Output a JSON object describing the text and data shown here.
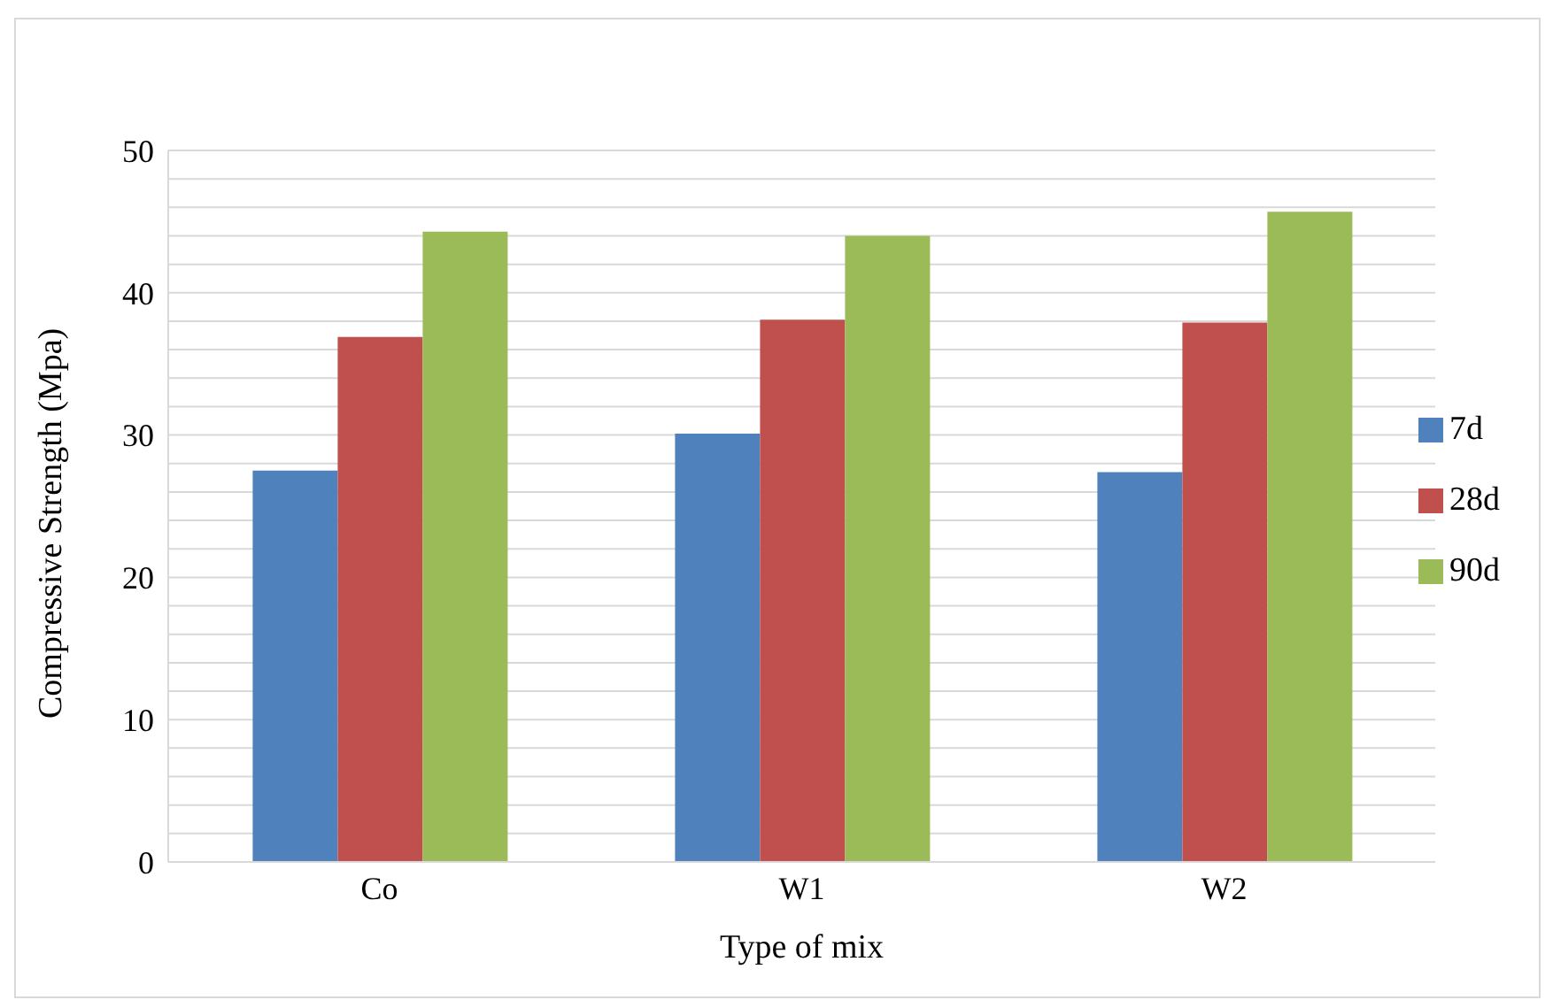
{
  "chart_data": {
    "type": "bar",
    "xlabel": "Type of mix",
    "ylabel": "Compressive Strength (Mpa)",
    "categories": [
      "Co",
      "W1",
      "W2"
    ],
    "series": [
      {
        "name": "7d",
        "color": "#4f81bd",
        "values": [
          27.5,
          30.1,
          27.4
        ]
      },
      {
        "name": "28d",
        "color": "#c0504d",
        "values": [
          36.9,
          38.1,
          37.9
        ]
      },
      {
        "name": "90d",
        "color": "#9bbb59",
        "values": [
          44.3,
          44.0,
          45.7
        ]
      }
    ],
    "ylim": [
      0,
      50
    ],
    "yticks": [
      0,
      {
        "value": 2,
        "label": null
      },
      {
        "value": 4,
        "label": null
      },
      {
        "value": 6,
        "label": null
      },
      {
        "value": 8,
        "label": null
      },
      10,
      {
        "value": 12,
        "label": null
      },
      {
        "value": 14,
        "label": null
      },
      {
        "value": 16,
        "label": null
      },
      {
        "value": 18,
        "label": null
      },
      20,
      {
        "value": 22,
        "label": null
      },
      {
        "value": 24,
        "label": null
      },
      {
        "value": 26,
        "label": null
      },
      {
        "value": 28,
        "label": null
      },
      30,
      {
        "value": 32,
        "label": null
      },
      {
        "value": 34,
        "label": null
      },
      {
        "value": 36,
        "label": null
      },
      {
        "value": 38,
        "label": null
      },
      40,
      {
        "value": 42,
        "label": null
      },
      {
        "value": 44,
        "label": null
      },
      {
        "value": 46,
        "label": null
      },
      {
        "value": 48,
        "label": null
      },
      50
    ],
    "grid": "y",
    "legend": "right"
  }
}
